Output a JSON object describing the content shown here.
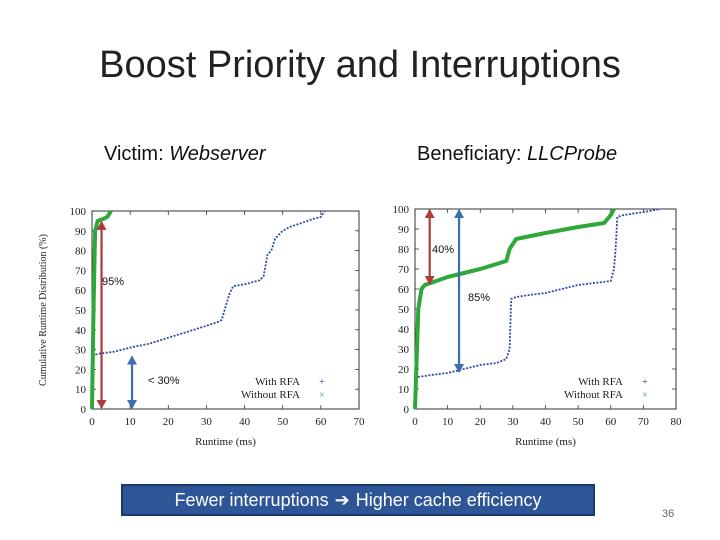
{
  "slide": {
    "title": "Boost Priority and Interruptions",
    "banner_left": "Fewer interruptions",
    "banner_right": "Higher cache efficiency",
    "page_number": "36"
  },
  "panels": {
    "left": {
      "role": "Victim:",
      "name": "Webserver"
    },
    "right": {
      "role": "Beneficiary:",
      "name": "LLCProbe"
    }
  },
  "colors": {
    "with_rfa": "#2c4aa8",
    "without_rfa": "#2ea83a",
    "red_arrow": "#b03a3a",
    "blue_arrow": "#3d6fb0"
  },
  "chart_data": [
    {
      "type": "line",
      "panel": "left",
      "title": "Victim: Webserver",
      "xlabel": "Runtime (ms)",
      "ylabel": "Cumulative Runtime Distribution (%)",
      "xlim": [
        0,
        70
      ],
      "ylim": [
        0,
        100
      ],
      "xticks": [
        0,
        10,
        20,
        30,
        40,
        50,
        60,
        70
      ],
      "yticks": [
        0,
        10,
        20,
        30,
        40,
        50,
        60,
        70,
        80,
        90,
        100
      ],
      "legend": [
        "With RFA",
        "Without RFA"
      ],
      "legend_markers": [
        "+",
        "×"
      ],
      "series": [
        {
          "name": "With RFA",
          "points": [
            [
              0,
              27
            ],
            [
              2,
              28
            ],
            [
              6,
              29
            ],
            [
              10,
              31
            ],
            [
              15,
              33
            ],
            [
              20,
              36
            ],
            [
              25,
              39
            ],
            [
              30,
              42
            ],
            [
              33,
              44
            ],
            [
              34,
              45
            ],
            [
              36,
              58
            ],
            [
              37,
              62
            ],
            [
              40,
              63
            ],
            [
              44,
              65
            ],
            [
              45,
              67
            ],
            [
              46,
              78
            ],
            [
              47,
              80
            ],
            [
              48,
              86
            ],
            [
              50,
              90
            ],
            [
              52,
              92
            ],
            [
              55,
              94
            ],
            [
              58,
              96
            ],
            [
              60,
              97
            ],
            [
              61,
              100
            ]
          ]
        },
        {
          "name": "Without RFA",
          "points": [
            [
              0,
              0
            ],
            [
              0.4,
              50
            ],
            [
              0.8,
              90
            ],
            [
              1.5,
              95
            ],
            [
              3,
              96
            ],
            [
              4,
              97
            ],
            [
              5,
              100
            ]
          ]
        }
      ],
      "annotations": [
        {
          "text": "95%",
          "from": 0,
          "to": 95,
          "x": 2.5,
          "color": "red"
        },
        {
          "text": "< 30%",
          "from": 0,
          "to": 27,
          "x": 10.5,
          "color": "blue"
        }
      ]
    },
    {
      "type": "line",
      "panel": "right",
      "title": "Beneficiary: LLCProbe",
      "xlabel": "Runtime (ms)",
      "ylabel": "",
      "xlim": [
        0,
        80
      ],
      "ylim": [
        0,
        100
      ],
      "xticks": [
        0,
        10,
        20,
        30,
        40,
        50,
        60,
        70,
        80
      ],
      "yticks": [
        0,
        10,
        20,
        30,
        40,
        50,
        60,
        70,
        80,
        90,
        100
      ],
      "legend": [
        "With RFA",
        "Without RFA"
      ],
      "legend_markers": [
        "+",
        "×"
      ],
      "series": [
        {
          "name": "With RFA",
          "points": [
            [
              0,
              15
            ],
            [
              1,
              16
            ],
            [
              5,
              17
            ],
            [
              10,
              18
            ],
            [
              15,
              20
            ],
            [
              20,
              22
            ],
            [
              25,
              23
            ],
            [
              28,
              25
            ],
            [
              29,
              30
            ],
            [
              29.5,
              55
            ],
            [
              31,
              56
            ],
            [
              35,
              57
            ],
            [
              40,
              58
            ],
            [
              45,
              60
            ],
            [
              50,
              62
            ],
            [
              55,
              63
            ],
            [
              60,
              64
            ],
            [
              61,
              70
            ],
            [
              61.5,
              80
            ],
            [
              62,
              96
            ],
            [
              64,
              97
            ],
            [
              68,
              98
            ],
            [
              72,
              99
            ],
            [
              75,
              100
            ]
          ]
        },
        {
          "name": "Without RFA",
          "points": [
            [
              0,
              0
            ],
            [
              1,
              50
            ],
            [
              2,
              60
            ],
            [
              3,
              62
            ],
            [
              10,
              66
            ],
            [
              20,
              70
            ],
            [
              28,
              74
            ],
            [
              29,
              80
            ],
            [
              31,
              85
            ],
            [
              40,
              88
            ],
            [
              50,
              91
            ],
            [
              58,
              93
            ],
            [
              60,
              97
            ],
            [
              61,
              100
            ]
          ]
        }
      ],
      "annotations": [
        {
          "text": "40%",
          "from": 62,
          "to": 100,
          "x": 4.5,
          "color": "red"
        },
        {
          "text": "85%",
          "from": 18,
          "to": 100,
          "x": 13.5,
          "color": "blue"
        }
      ]
    }
  ]
}
